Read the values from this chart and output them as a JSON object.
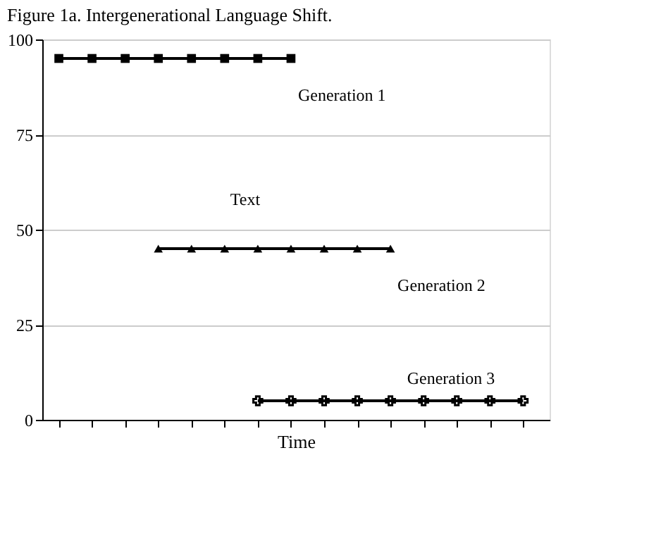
{
  "chart_data": {
    "type": "line",
    "title": "Figure 1a. Intergenerational Language Shift.",
    "xlabel": "Time",
    "categories": [
      null,
      null,
      null,
      null,
      null,
      null,
      null,
      null,
      null,
      null,
      null,
      null,
      null,
      null,
      null
    ],
    "series": [
      {
        "name": "Generation 1",
        "color": "#000000",
        "marker": "square",
        "values": [
          95,
          95,
          95,
          95,
          95,
          95,
          95,
          95,
          null,
          null,
          null,
          null,
          null,
          null,
          null
        ]
      },
      {
        "name": "Generation 2",
        "color": "#000000",
        "marker": "triangle",
        "values": [
          null,
          null,
          null,
          45,
          45,
          45,
          45,
          45,
          45,
          45,
          45,
          null,
          null,
          null,
          null
        ]
      },
      {
        "name": "Generation 3",
        "color": "#000000",
        "marker": "cross",
        "values": [
          null,
          null,
          null,
          null,
          null,
          null,
          5,
          5,
          5,
          5,
          5,
          5,
          5,
          5,
          5
        ]
      }
    ],
    "annotations": [
      "Text"
    ],
    "ylim": [
      0,
      100
    ],
    "yticks": [
      0,
      25,
      50,
      75,
      100
    ],
    "grid": "y",
    "tick_labels": "y",
    "line_style": "solid"
  }
}
